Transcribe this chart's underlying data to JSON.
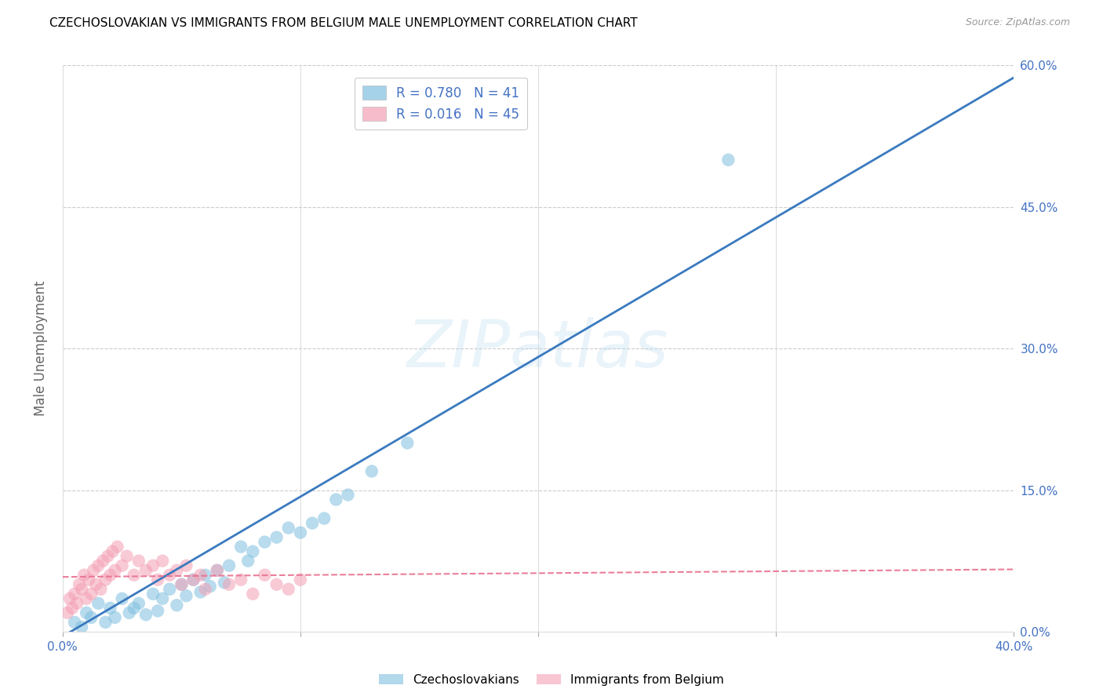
{
  "title": "CZECHOSLOVAKIAN VS IMMIGRANTS FROM BELGIUM MALE UNEMPLOYMENT CORRELATION CHART",
  "source": "Source: ZipAtlas.com",
  "ylabel": "Male Unemployment",
  "xlim": [
    0.0,
    0.4
  ],
  "ylim": [
    0.0,
    0.6
  ],
  "xticks": [
    0.0,
    0.1,
    0.2,
    0.3,
    0.4
  ],
  "yticks": [
    0.0,
    0.15,
    0.3,
    0.45,
    0.6
  ],
  "xticklabels": [
    "0.0%",
    "",
    "",
    "",
    "40.0%"
  ],
  "yticklabels": [
    "0.0%",
    "15.0%",
    "30.0%",
    "45.0%",
    "60.0%"
  ],
  "blue_R": 0.78,
  "blue_N": 41,
  "pink_R": 0.016,
  "pink_N": 45,
  "blue_color": "#7fbfdf",
  "pink_color": "#f4a0b5",
  "blue_line_color": "#3a7abf",
  "pink_line_color": "#e87090",
  "watermark": "ZIPatlas",
  "legend_label_blue": "Czechoslovakians",
  "legend_label_pink": "Immigrants from Belgium",
  "blue_scatter_x": [
    0.005,
    0.008,
    0.01,
    0.012,
    0.015,
    0.018,
    0.02,
    0.022,
    0.025,
    0.028,
    0.03,
    0.032,
    0.035,
    0.038,
    0.04,
    0.042,
    0.045,
    0.048,
    0.05,
    0.052,
    0.055,
    0.058,
    0.06,
    0.062,
    0.065,
    0.068,
    0.07,
    0.075,
    0.078,
    0.08,
    0.085,
    0.09,
    0.095,
    0.1,
    0.105,
    0.11,
    0.115,
    0.12,
    0.13,
    0.145,
    0.28
  ],
  "blue_scatter_y": [
    0.01,
    0.005,
    0.02,
    0.015,
    0.03,
    0.01,
    0.025,
    0.015,
    0.035,
    0.02,
    0.025,
    0.03,
    0.018,
    0.04,
    0.022,
    0.035,
    0.045,
    0.028,
    0.05,
    0.038,
    0.055,
    0.042,
    0.06,
    0.048,
    0.065,
    0.052,
    0.07,
    0.09,
    0.075,
    0.085,
    0.095,
    0.1,
    0.11,
    0.105,
    0.115,
    0.12,
    0.14,
    0.145,
    0.17,
    0.2,
    0.5
  ],
  "pink_scatter_x": [
    0.002,
    0.003,
    0.004,
    0.005,
    0.006,
    0.007,
    0.008,
    0.009,
    0.01,
    0.011,
    0.012,
    0.013,
    0.014,
    0.015,
    0.016,
    0.017,
    0.018,
    0.019,
    0.02,
    0.021,
    0.022,
    0.023,
    0.025,
    0.027,
    0.03,
    0.032,
    0.035,
    0.038,
    0.04,
    0.042,
    0.045,
    0.048,
    0.05,
    0.052,
    0.055,
    0.058,
    0.06,
    0.065,
    0.07,
    0.075,
    0.08,
    0.085,
    0.09,
    0.095,
    0.1
  ],
  "pink_scatter_y": [
    0.02,
    0.035,
    0.025,
    0.04,
    0.03,
    0.05,
    0.045,
    0.06,
    0.035,
    0.055,
    0.04,
    0.065,
    0.05,
    0.07,
    0.045,
    0.075,
    0.055,
    0.08,
    0.06,
    0.085,
    0.065,
    0.09,
    0.07,
    0.08,
    0.06,
    0.075,
    0.065,
    0.07,
    0.055,
    0.075,
    0.06,
    0.065,
    0.05,
    0.07,
    0.055,
    0.06,
    0.045,
    0.065,
    0.05,
    0.055,
    0.04,
    0.06,
    0.05,
    0.045,
    0.055
  ],
  "background_color": "#ffffff",
  "grid_color": "#cccccc",
  "tick_color": "#4472c4",
  "title_color": "#000000",
  "source_color": "#999999"
}
